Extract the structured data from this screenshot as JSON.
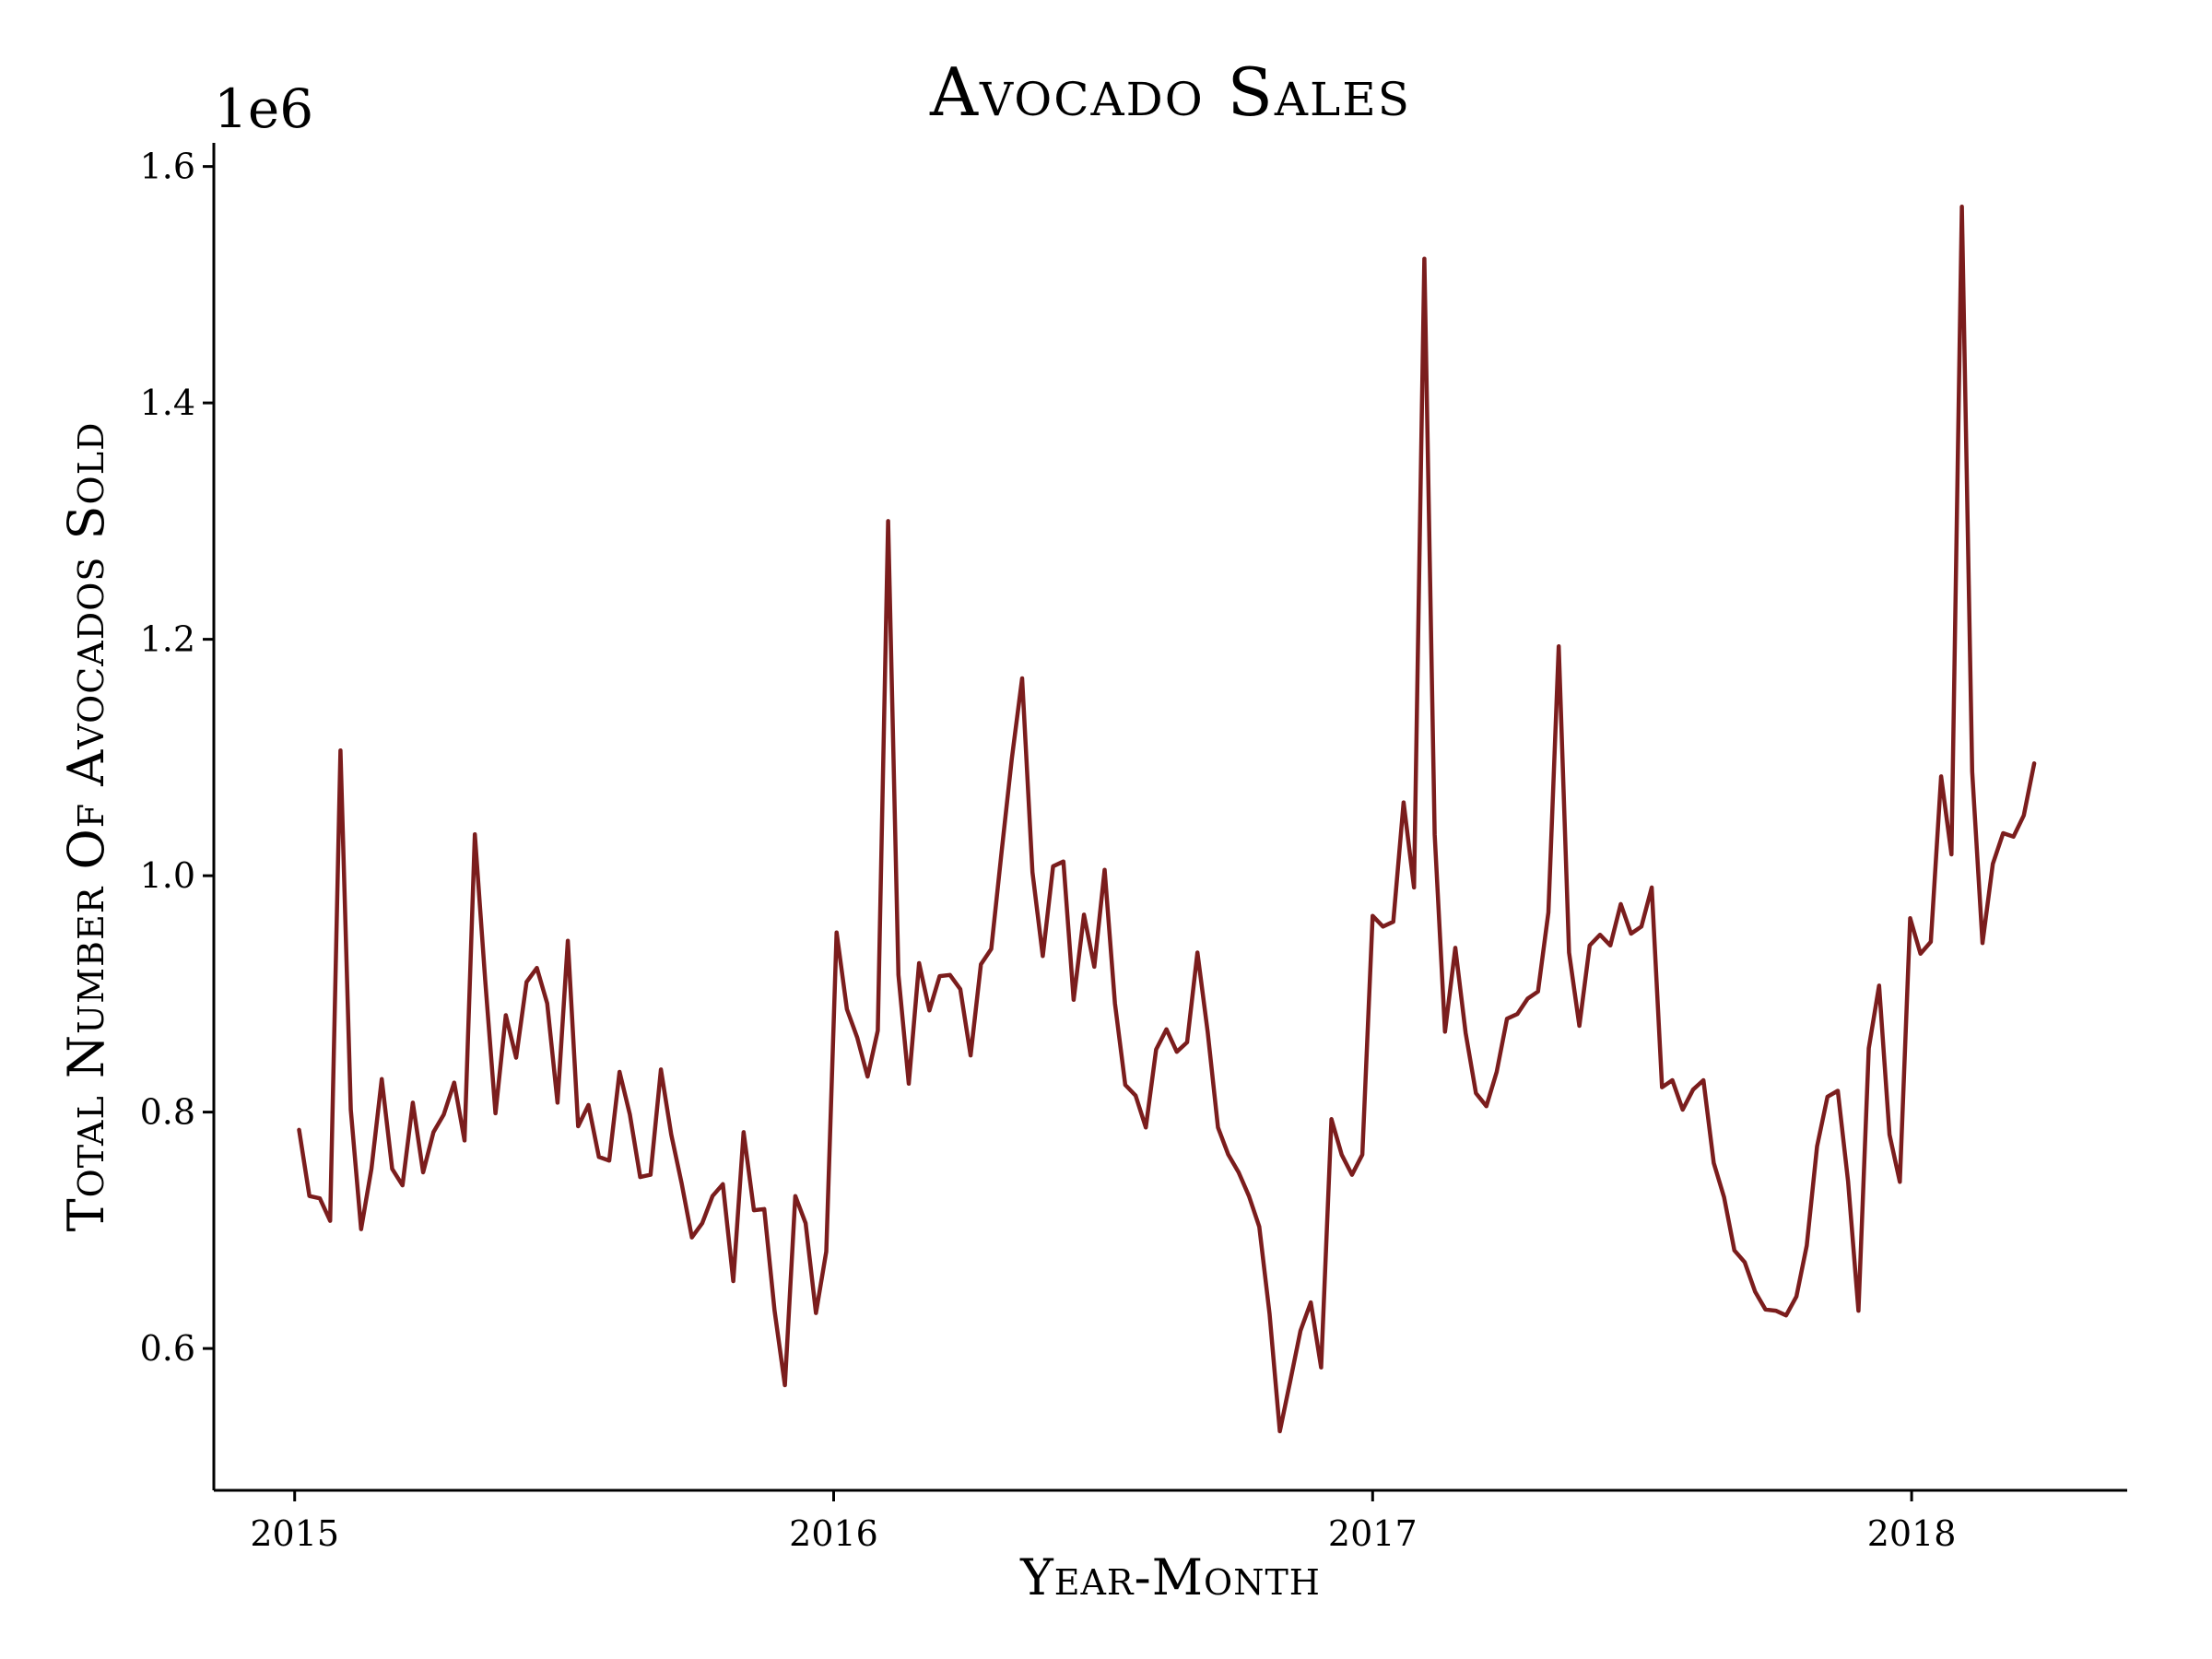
{
  "chart_data": {
    "type": "line",
    "title": "Avocado Sales",
    "xlabel": "Year-Month",
    "ylabel": "Total Number Of Avocados Sold",
    "y_offset_label": "1e6",
    "ylim": [
      0.48,
      1.62
    ],
    "xlim": [
      2014.85,
      2018.4
    ],
    "x_tick_labels": [
      "2015",
      "2016",
      "2017",
      "2018"
    ],
    "x_tick_values": [
      2015,
      2016,
      2017,
      2018
    ],
    "y_tick_labels": [
      "0.6",
      "0.8",
      "1.0",
      "1.2",
      "1.4",
      "1.6"
    ],
    "y_tick_values": [
      0.6,
      0.8,
      1.0,
      1.2,
      1.4,
      1.6
    ],
    "grid": false,
    "colors": {
      "line": "#7b1d1d"
    },
    "series": [
      {
        "x": [
          "2015-01-04",
          "2015-01-11",
          "2015-01-18",
          "2015-01-25",
          "2015-02-01",
          "2015-02-08",
          "2015-02-15",
          "2015-02-22",
          "2015-03-01",
          "2015-03-08",
          "2015-03-15",
          "2015-03-22",
          "2015-03-29",
          "2015-04-05",
          "2015-04-12",
          "2015-04-19",
          "2015-04-26",
          "2015-05-03",
          "2015-05-10",
          "2015-05-17",
          "2015-05-24",
          "2015-05-31",
          "2015-06-07",
          "2015-06-14",
          "2015-06-21",
          "2015-06-28",
          "2015-07-05",
          "2015-07-12",
          "2015-07-19",
          "2015-07-26",
          "2015-08-02",
          "2015-08-09",
          "2015-08-16",
          "2015-08-23",
          "2015-08-30",
          "2015-09-06",
          "2015-09-13",
          "2015-09-20",
          "2015-09-27",
          "2015-10-04",
          "2015-10-11",
          "2015-10-18",
          "2015-10-25",
          "2015-11-01",
          "2015-11-08",
          "2015-11-15",
          "2015-11-22",
          "2015-11-29",
          "2015-12-06",
          "2015-12-13",
          "2015-12-20",
          "2015-12-27",
          "2016-01-03",
          "2016-01-10",
          "2016-01-17",
          "2016-01-24",
          "2016-01-31",
          "2016-02-07",
          "2016-02-14",
          "2016-02-21",
          "2016-02-28",
          "2016-03-06",
          "2016-03-13",
          "2016-03-20",
          "2016-03-27",
          "2016-04-03",
          "2016-04-10",
          "2016-04-17",
          "2016-04-24",
          "2016-05-01",
          "2016-05-08",
          "2016-05-15",
          "2016-05-22",
          "2016-05-29",
          "2016-06-05",
          "2016-06-12",
          "2016-06-19",
          "2016-06-26",
          "2016-07-03",
          "2016-07-10",
          "2016-07-17",
          "2016-07-24",
          "2016-07-31",
          "2016-08-07",
          "2016-08-14",
          "2016-08-21",
          "2016-08-28",
          "2016-09-04",
          "2016-09-11",
          "2016-09-18",
          "2016-09-25",
          "2016-10-02",
          "2016-10-09",
          "2016-10-16",
          "2016-10-23",
          "2016-10-30",
          "2016-11-06",
          "2016-11-13",
          "2016-11-20",
          "2016-11-27",
          "2016-12-04",
          "2016-12-11",
          "2016-12-18",
          "2016-12-25",
          "2017-01-01",
          "2017-01-08",
          "2017-01-15",
          "2017-01-22",
          "2017-01-29",
          "2017-02-05",
          "2017-02-12",
          "2017-02-19",
          "2017-02-26",
          "2017-03-05",
          "2017-03-12",
          "2017-03-19",
          "2017-03-26",
          "2017-04-02",
          "2017-04-09",
          "2017-04-16",
          "2017-04-23",
          "2017-04-30",
          "2017-05-07",
          "2017-05-14",
          "2017-05-21",
          "2017-05-28",
          "2017-06-04",
          "2017-06-11",
          "2017-06-18",
          "2017-06-25",
          "2017-07-02",
          "2017-07-09",
          "2017-07-16",
          "2017-07-23",
          "2017-07-30",
          "2017-08-06",
          "2017-08-13",
          "2017-08-20",
          "2017-08-27",
          "2017-09-03",
          "2017-09-10",
          "2017-09-17",
          "2017-09-24",
          "2017-10-01",
          "2017-10-08",
          "2017-10-15",
          "2017-10-22",
          "2017-10-29",
          "2017-11-05",
          "2017-11-12",
          "2017-11-19",
          "2017-11-26",
          "2017-12-03",
          "2017-12-10",
          "2017-12-17",
          "2017-12-24",
          "2017-12-31",
          "2018-01-07",
          "2018-01-14",
          "2018-01-21",
          "2018-01-28",
          "2018-02-04",
          "2018-02-11",
          "2018-02-18",
          "2018-02-25",
          "2018-03-04",
          "2018-03-11",
          "2018-03-18",
          "2018-03-25"
        ],
        "values": [
          0.785,
          0.729,
          0.727,
          0.708,
          1.106,
          0.802,
          0.701,
          0.752,
          0.828,
          0.752,
          0.738,
          0.808,
          0.749,
          0.783,
          0.798,
          0.825,
          0.776,
          1.035,
          0.912,
          0.799,
          0.882,
          0.846,
          0.91,
          0.922,
          0.892,
          0.808,
          0.945,
          0.788,
          0.806,
          0.762,
          0.759,
          0.834,
          0.798,
          0.745,
          0.747,
          0.836,
          0.781,
          0.74,
          0.694,
          0.706,
          0.729,
          0.739,
          0.657,
          0.783,
          0.717,
          0.718,
          0.632,
          0.569,
          0.729,
          0.706,
          0.63,
          0.682,
          0.952,
          0.887,
          0.863,
          0.83,
          0.869,
          1.3,
          0.916,
          0.824,
          0.926,
          0.886,
          0.915,
          0.916,
          0.904,
          0.848,
          0.925,
          0.938,
          1.02,
          1.099,
          1.167,
          1.003,
          0.932,
          1.008,
          1.012,
          0.895,
          0.967,
          0.923,
          1.005,
          0.892,
          0.823,
          0.814,
          0.787,
          0.853,
          0.87,
          0.851,
          0.859,
          0.935,
          0.868,
          0.787,
          0.764,
          0.749,
          0.729,
          0.703,
          0.629,
          0.53,
          0.572,
          0.615,
          0.639,
          0.584,
          0.794,
          0.764,
          0.747,
          0.764,
          0.966,
          0.957,
          0.961,
          1.062,
          0.99,
          1.522,
          1.035,
          0.868,
          0.939,
          0.867,
          0.816,
          0.805,
          0.834,
          0.879,
          0.883,
          0.896,
          0.902,
          0.969,
          1.194,
          0.935,
          0.873,
          0.941,
          0.95,
          0.941,
          0.976,
          0.951,
          0.957,
          0.99,
          0.821,
          0.827,
          0.802,
          0.819,
          0.827,
          0.757,
          0.728,
          0.683,
          0.673,
          0.648,
          0.633,
          0.632,
          0.628,
          0.644,
          0.687,
          0.771,
          0.813,
          0.818,
          0.741,
          0.632,
          0.854,
          0.907,
          0.781,
          0.741,
          0.964,
          0.934,
          0.944,
          1.084,
          1.018,
          1.566,
          1.088,
          0.943,
          1.01,
          1.036,
          1.033,
          1.051,
          1.095
        ]
      }
    ]
  }
}
